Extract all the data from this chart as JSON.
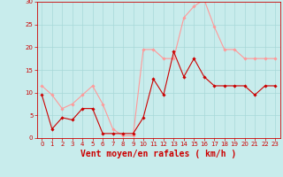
{
  "x": [
    0,
    1,
    2,
    3,
    4,
    5,
    6,
    7,
    8,
    9,
    10,
    11,
    12,
    13,
    14,
    15,
    16,
    17,
    18,
    19,
    20,
    21,
    22,
    23
  ],
  "wind_avg": [
    9.5,
    2.0,
    4.5,
    4.0,
    6.5,
    6.5,
    1.0,
    1.0,
    1.0,
    1.0,
    4.5,
    13.0,
    9.5,
    19.0,
    13.5,
    17.5,
    13.5,
    11.5,
    11.5,
    11.5,
    11.5,
    9.5,
    11.5,
    11.5
  ],
  "wind_gust": [
    11.5,
    9.5,
    6.5,
    7.5,
    9.5,
    11.5,
    7.5,
    2.0,
    0.5,
    0.5,
    19.5,
    19.5,
    17.5,
    17.5,
    26.5,
    29.0,
    30.5,
    24.5,
    19.5,
    19.5,
    17.5,
    17.5,
    17.5,
    17.5
  ],
  "avg_color": "#cc0000",
  "gust_color": "#ff9999",
  "background_color": "#c8ecec",
  "grid_color": "#a8d8d8",
  "xlabel": "Vent moyen/en rafales ( km/h )",
  "xlabel_color": "#cc0000",
  "ylim": [
    0,
    30
  ],
  "yticks": [
    0,
    5,
    10,
    15,
    20,
    25,
    30
  ],
  "xticks": [
    0,
    1,
    2,
    3,
    4,
    5,
    6,
    7,
    8,
    9,
    10,
    11,
    12,
    13,
    14,
    15,
    16,
    17,
    18,
    19,
    20,
    21,
    22,
    23
  ],
  "marker": "D",
  "markersize": 1.8,
  "linewidth": 0.8,
  "tick_fontsize": 5.0,
  "xlabel_fontsize": 7.0
}
